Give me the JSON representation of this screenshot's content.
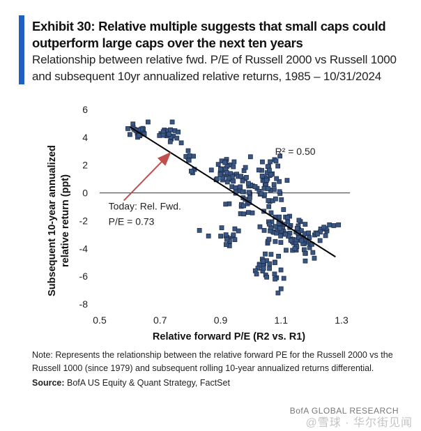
{
  "header": {
    "title": "Exhibit 30: Relative multiple suggests that small caps could outperform large caps over the next ten years",
    "subtitle": "Relationship between relative fwd. P/E of Russell 2000 vs Russell 1000 and subsequent 10yr annualized relative returns, 1985 – 10/31/2024"
  },
  "colors": {
    "accent": "#1f5fbf",
    "marker_fill": "#3a5683",
    "marker_edge": "#1f2f4d",
    "trend_line": "#000000",
    "arrow": "#c0504d"
  },
  "chart_data": {
    "type": "scatter",
    "title": "",
    "xlabel": "Relative forward P/E (R2 vs. R1)",
    "ylabel": "Subsequent 10-year annualized relative return (ppt)",
    "xlim": [
      0.5,
      1.3
    ],
    "ylim": [
      -8,
      6
    ],
    "xticks": [
      0.5,
      0.7,
      0.9,
      1.1,
      1.3
    ],
    "xtick_labels": [
      "0.5",
      "0.7",
      "0.9",
      "1.1",
      "1.3"
    ],
    "yticks": [
      6,
      4,
      2,
      0,
      -2,
      -4,
      -6,
      -8
    ],
    "ytick_labels": [
      "6",
      "4",
      "2",
      "0",
      "-2",
      "-4",
      "-6",
      "-8"
    ],
    "zero_line": true,
    "trendline": {
      "x": [
        0.6,
        1.28
      ],
      "y": [
        4.75,
        -4.6
      ]
    },
    "r_squared_label": "R² = 0.50",
    "r_squared_anchor": [
      1.08,
      3.0
    ],
    "annotation": {
      "line1": "Today: Rel. Fwd.",
      "line2": "P/E = 0.73",
      "text_anchor": [
        0.52,
        -1.0
      ],
      "arrow_from": [
        0.58,
        -0.55
      ],
      "arrow_to": [
        0.73,
        2.8
      ]
    },
    "clusters": [
      {
        "x": 0.63,
        "y": 4.4,
        "sx": 0.02,
        "sy": 0.35,
        "n": 22
      },
      {
        "x": 0.72,
        "y": 4.2,
        "sx": 0.025,
        "sy": 0.35,
        "n": 22
      },
      {
        "x": 0.81,
        "y": 2.3,
        "sx": 0.02,
        "sy": 0.6,
        "n": 10
      },
      {
        "x": 0.91,
        "y": 1.5,
        "sx": 0.03,
        "sy": 0.6,
        "n": 35
      },
      {
        "x": 0.98,
        "y": 0.2,
        "sx": 0.035,
        "sy": 1.4,
        "n": 40
      },
      {
        "x": 1.07,
        "y": 0.6,
        "sx": 0.035,
        "sy": 1.2,
        "n": 45
      },
      {
        "x": 1.1,
        "y": -2.6,
        "sx": 0.04,
        "sy": 0.9,
        "n": 50
      },
      {
        "x": 1.17,
        "y": -3.4,
        "sx": 0.03,
        "sy": 0.9,
        "n": 40
      },
      {
        "x": 1.05,
        "y": -5.3,
        "sx": 0.04,
        "sy": 0.6,
        "n": 25
      },
      {
        "x": 0.92,
        "y": -3.2,
        "sx": 0.03,
        "sy": 0.7,
        "n": 15
      },
      {
        "x": 1.24,
        "y": -2.9,
        "sx": 0.02,
        "sy": 0.5,
        "n": 10
      }
    ],
    "points": [
      [
        0.62,
        4.5
      ],
      [
        0.66,
        5.1
      ],
      [
        0.74,
        5.1
      ],
      [
        0.6,
        4.2
      ],
      [
        0.83,
        -2.7
      ],
      [
        0.86,
        -3.1
      ],
      [
        1.21,
        -4.7
      ],
      [
        1.18,
        -4.9
      ],
      [
        1.29,
        -2.3
      ],
      [
        1.09,
        -7.2
      ],
      [
        1.1,
        -6.9
      ],
      [
        1.08,
        -6.2
      ],
      [
        1.26,
        -2.3
      ],
      [
        1.12,
        0.9
      ],
      [
        0.77,
        3.6
      ]
    ]
  },
  "footer": {
    "note": "Note: Represents the relationship between the relative forward PE for the Russell 2000 vs the Russell 1000 (since 1979) and subsequent rolling 10-year annualized returns differential.",
    "source_label": "Source:",
    "source_text": " BofA US Equity & Quant Strategy, FactSet",
    "brand": "BofA GLOBAL RESEARCH",
    "watermark": "@雪球 · 华尔街见闻"
  }
}
